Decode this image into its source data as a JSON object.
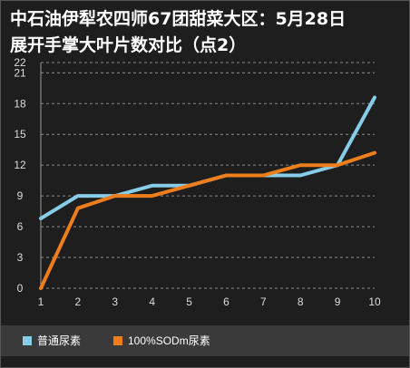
{
  "chart_data": {
    "type": "line",
    "title": "中石油伊犁农四师67团甜菜大区：5月28日\n展开手掌大叶片数对比（点2）",
    "x": [
      1,
      2,
      3,
      4,
      5,
      6,
      7,
      8,
      9,
      10
    ],
    "x_tick_labels": [
      "1",
      "2",
      "3",
      "4",
      "5",
      "6",
      "7",
      "8",
      "9",
      "10"
    ],
    "ylim": [
      0,
      22
    ],
    "y_ticks": [
      0,
      3,
      6,
      9,
      12,
      15,
      18,
      21,
      22
    ],
    "y_tick_labels": [
      "0",
      "3",
      "6",
      "9",
      "12",
      "15",
      "18",
      "21",
      "22"
    ],
    "grid": "horizontal dashed",
    "legend_position": "bottom",
    "series": [
      {
        "name": "普通尿素",
        "color": "#87cde8",
        "values": [
          6.8,
          9.0,
          9.0,
          10.0,
          10.0,
          11.0,
          11.0,
          11.0,
          12.0,
          18.6
        ]
      },
      {
        "name": "100%SODm尿素",
        "color": "#ee7d1b",
        "values": [
          0.0,
          7.8,
          9.0,
          9.0,
          10.0,
          11.0,
          11.0,
          12.0,
          12.0,
          13.2
        ]
      }
    ]
  }
}
